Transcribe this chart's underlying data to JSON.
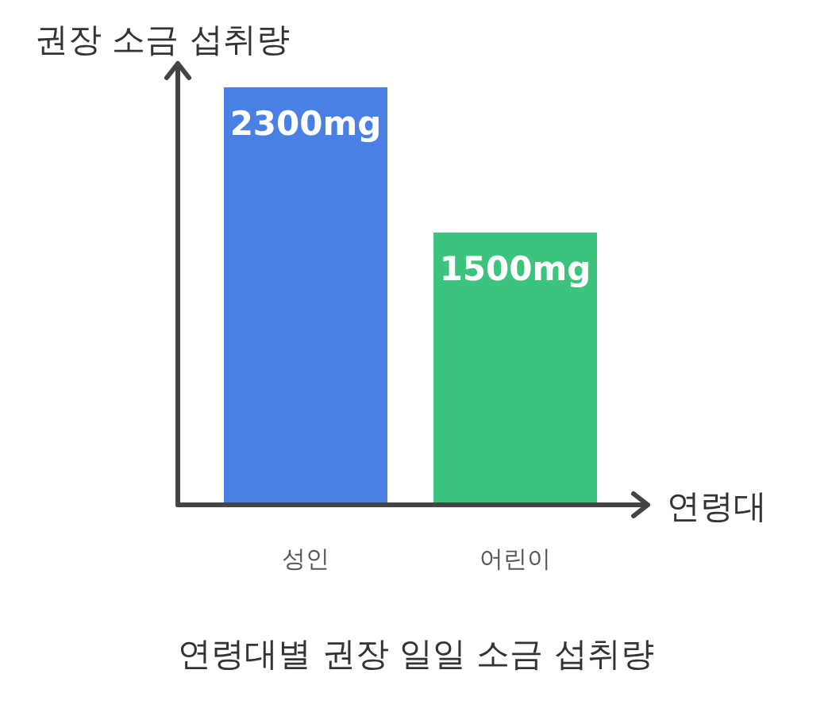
{
  "chart_data": {
    "type": "bar",
    "title": "연령대별 권장 일일 소금 섭취량",
    "xlabel": "연령대",
    "ylabel": "권장 소금 섭취량",
    "categories": [
      "성인",
      "어린이"
    ],
    "values": [
      2300,
      1500
    ],
    "colors": [
      "#4a80e3",
      "#3cc47e"
    ],
    "value_labels": [
      "2300mg",
      "1500mg"
    ]
  }
}
